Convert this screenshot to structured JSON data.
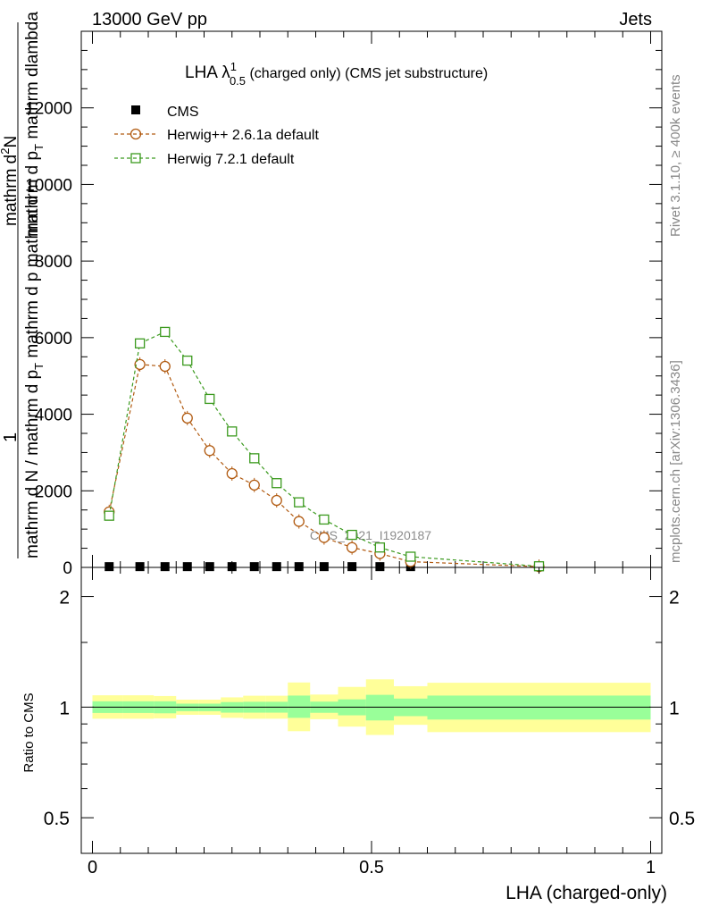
{
  "header": {
    "energy_label": "13000 GeV pp",
    "process_label": "Jets"
  },
  "side_labels": {
    "rivet": "Rivet 3.1.10, ≥ 400k events",
    "mcplots": "mcplots.cern.ch [arXiv:1306.3436]"
  },
  "colors": {
    "cms": "#000000",
    "herwig_pp": "#b15a10",
    "herwig_7": "#3b9a1e",
    "band_inner": "#99ff99",
    "band_outer": "#ffff99"
  },
  "chart_data": [
    {
      "type": "line",
      "title": "LHA λ¹₀.₅ (charged only) (CMS jet substructure)",
      "title_parts": {
        "main": "LHA λ",
        "superscript": "1",
        "subscript": "0.5",
        "rest": " (charged only) (CMS jet substructure)"
      },
      "ylabel_top": "mathrm d²N / mathrm d p_T mathrm d lambda",
      "ylabel_top_parts": {
        "numerator": "mathrm d²N",
        "numerator_lines": [
          "mathrm d",
          "N"
        ],
        "numerator_sup": "2",
        "denominator_lines": [
          "mathrm d p",
          "T",
          " mathrm dlambda"
        ],
        "one": "1",
        "bottom_lines": [
          "mathrm d N / mathrm d p",
          "T"
        ],
        "bottom_rest": " mathrm d p mathrm d"
      },
      "xlim": [
        -0.02,
        1.02
      ],
      "ylim": [
        0,
        14000
      ],
      "yticks": [
        0,
        2000,
        4000,
        6000,
        8000,
        10000,
        12000
      ],
      "ytick_labels": [
        "0",
        "2000",
        "4000",
        "6000",
        "8000",
        "10000",
        "12000"
      ],
      "watermark": "CMS_2021_I1920187",
      "legend": {
        "position": "top-left",
        "entries": [
          "CMS",
          "Herwig++ 2.6.1a default",
          "Herwig 7.2.1 default"
        ]
      },
      "series": [
        {
          "name": "CMS",
          "marker": "filled-square",
          "x": [
            0.03,
            0.085,
            0.13,
            0.17,
            0.21,
            0.25,
            0.29,
            0.33,
            0.37,
            0.415,
            0.465,
            0.515,
            0.57,
            0.8
          ],
          "values": [
            20,
            20,
            20,
            20,
            20,
            20,
            20,
            20,
            20,
            20,
            20,
            20,
            20,
            20
          ]
        },
        {
          "name": "Herwig++ 2.6.1a default",
          "marker": "open-circle",
          "x": [
            0.03,
            0.085,
            0.13,
            0.17,
            0.21,
            0.25,
            0.29,
            0.33,
            0.37,
            0.415,
            0.465,
            0.515,
            0.57,
            0.8
          ],
          "values": [
            1450,
            5300,
            5250,
            3900,
            3050,
            2450,
            2150,
            1750,
            1200,
            780,
            520,
            360,
            150,
            20
          ]
        },
        {
          "name": "Herwig 7.2.1 default",
          "marker": "open-square",
          "x": [
            0.03,
            0.085,
            0.13,
            0.17,
            0.21,
            0.25,
            0.29,
            0.33,
            0.37,
            0.415,
            0.465,
            0.515,
            0.57,
            0.8
          ],
          "values": [
            1350,
            5850,
            6150,
            5400,
            4400,
            3550,
            2850,
            2200,
            1700,
            1250,
            850,
            520,
            280,
            30
          ]
        }
      ]
    },
    {
      "type": "line",
      "title": "Ratio to CMS",
      "xlabel": "LHA (charged-only)",
      "ylabel": "Ratio to CMS",
      "xlim": [
        -0.02,
        1.02
      ],
      "ylim_log": [
        0.4,
        2.4
      ],
      "yticks": [
        0.5,
        1,
        2
      ],
      "ytick_labels": [
        "0.5",
        "1",
        "2"
      ],
      "xticks": [
        0,
        0.5,
        1
      ],
      "xtick_labels": [
        "0",
        "0.5",
        "1"
      ],
      "reference": 1,
      "bins": [
        {
          "lo": 0.0,
          "hi": 0.055,
          "inner": [
            0.964,
            1.037
          ],
          "outer": [
            0.93,
            1.077
          ]
        },
        {
          "lo": 0.055,
          "hi": 0.11,
          "inner": [
            0.964,
            1.037
          ],
          "outer": [
            0.93,
            1.077
          ]
        },
        {
          "lo": 0.11,
          "hi": 0.15,
          "inner": [
            0.962,
            1.037
          ],
          "outer": [
            0.932,
            1.072
          ]
        },
        {
          "lo": 0.15,
          "hi": 0.19,
          "inner": [
            0.975,
            1.022
          ],
          "outer": [
            0.953,
            1.048
          ]
        },
        {
          "lo": 0.19,
          "hi": 0.23,
          "inner": [
            0.975,
            1.022
          ],
          "outer": [
            0.953,
            1.048
          ]
        },
        {
          "lo": 0.23,
          "hi": 0.27,
          "inner": [
            0.966,
            1.032
          ],
          "outer": [
            0.935,
            1.063
          ]
        },
        {
          "lo": 0.27,
          "hi": 0.31,
          "inner": [
            0.966,
            1.034
          ],
          "outer": [
            0.93,
            1.074
          ]
        },
        {
          "lo": 0.31,
          "hi": 0.35,
          "inner": [
            0.966,
            1.034
          ],
          "outer": [
            0.93,
            1.074
          ]
        },
        {
          "lo": 0.35,
          "hi": 0.39,
          "inner": [
            0.935,
            1.075
          ],
          "outer": [
            0.86,
            1.167
          ]
        },
        {
          "lo": 0.39,
          "hi": 0.44,
          "inner": [
            0.965,
            1.035
          ],
          "outer": [
            0.927,
            1.082
          ]
        },
        {
          "lo": 0.44,
          "hi": 0.49,
          "inner": [
            0.95,
            1.05
          ],
          "outer": [
            0.885,
            1.135
          ]
        },
        {
          "lo": 0.49,
          "hi": 0.54,
          "inner": [
            0.92,
            1.08
          ],
          "outer": [
            0.84,
            1.19
          ]
        },
        {
          "lo": 0.54,
          "hi": 0.6,
          "inner": [
            0.945,
            1.055
          ],
          "outer": [
            0.895,
            1.14
          ]
        },
        {
          "lo": 0.6,
          "hi": 1.0,
          "inner": [
            0.925,
            1.075
          ],
          "outer": [
            0.855,
            1.165
          ]
        }
      ]
    }
  ]
}
